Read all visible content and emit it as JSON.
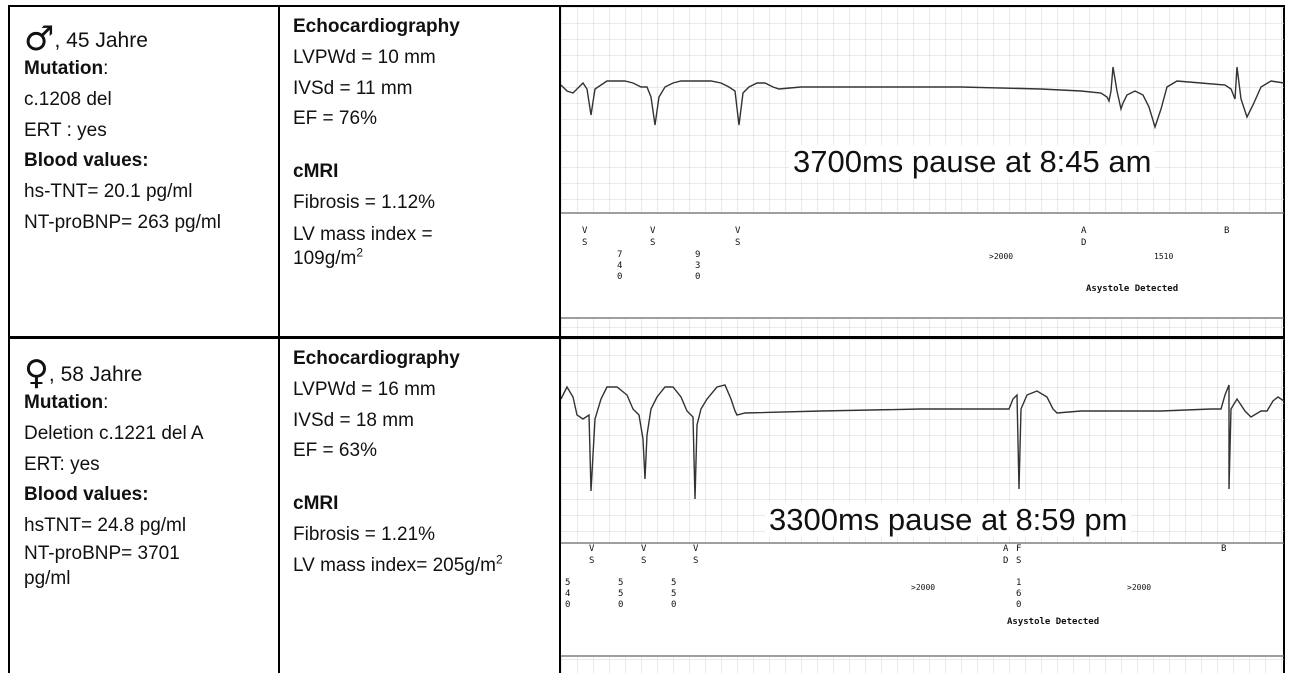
{
  "patients": [
    {
      "sex_symbol": "♂",
      "age": ", 45 Jahre",
      "mutation_label": "Mutation",
      "mutation_colon": ":",
      "mutation": "c.1208 del",
      "ert": "ERT : yes",
      "blood_label": "Blood values:",
      "tnt": "hs-TNT= 20.1 pg/ml",
      "bnp": "NT-proBNP= 263 pg/ml",
      "bnp_cont": "",
      "echo_title": "Echocardiography",
      "lvpwd": "LVPWd = 10 mm",
      "ivsd": "IVSd = 11 mm",
      "ef": "EF = 76%",
      "cmri_title": "cMRI",
      "fibrosis": "Fibrosis = 1.12%",
      "lv_mass_a": "LV mass index =",
      "lv_mass_b": "109g/m",
      "lv_mass_exp": "2",
      "pause": "3700ms pause at 8:45 am",
      "beat_labels": [
        {
          "top": "V",
          "bottom": "S"
        },
        {
          "top": "V",
          "bottom": "S"
        },
        {
          "top": "V",
          "bottom": "S"
        },
        {
          "top": "A",
          "bottom": "D"
        },
        {
          "top": "B",
          "bottom": ""
        }
      ],
      "intervals": [
        {
          "digits": [
            "7",
            "4",
            "0"
          ]
        },
        {
          "digits": [
            "9",
            "3",
            "0"
          ]
        }
      ],
      "gt_label": ">2000",
      "interval_label": "1510",
      "asystole": "Asystole Detected"
    },
    {
      "sex_symbol": "♀",
      "age": ", 58 Jahre",
      "mutation_label": "Mutation",
      "mutation_colon": ":",
      "mutation": "Deletion c.1221 del A",
      "ert": "ERT: yes",
      "blood_label": "Blood values:",
      "tnt": "hsTNT= 24.8 pg/ml",
      "bnp": "NT-proBNP= 3701",
      "bnp_cont": "pg/ml",
      "echo_title": "Echocardiography",
      "lvpwd": "LVPWd = 16 mm",
      "ivsd": "IVSd = 18 mm",
      "ef": "EF = 63%",
      "cmri_title": "cMRI",
      "fibrosis": "Fibrosis = 1.21%",
      "lv_mass_a": "LV mass index= 205g/m",
      "lv_mass_exp": "2",
      "pause": "3300ms pause at 8:59 pm",
      "beat_labels": [
        {
          "top": "V",
          "bottom": "S"
        },
        {
          "top": "V",
          "bottom": "S"
        },
        {
          "top": "V",
          "bottom": "S"
        },
        {
          "top": "A",
          "bottom": "D"
        },
        {
          "top": "F",
          "bottom": "S"
        },
        {
          "top": "B",
          "bottom": ""
        }
      ],
      "intervals": [
        {
          "digits": [
            "5",
            "4",
            "0"
          ]
        },
        {
          "digits": [
            "5",
            "5",
            "0"
          ]
        },
        {
          "digits": [
            "5",
            "5",
            "0"
          ]
        },
        {
          "digits": [
            "1",
            "6",
            "0"
          ]
        }
      ],
      "gt_label": ">2000",
      "gt_label2": ">2000",
      "asystole": "Asystole Detected"
    }
  ]
}
